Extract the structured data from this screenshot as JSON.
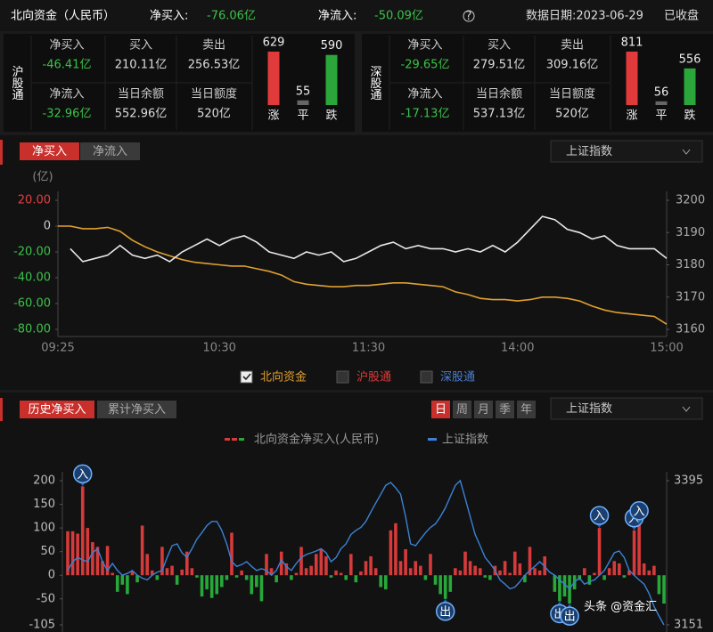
{
  "header": {
    "title": "北向资金（人民币）",
    "net_buy_label": "净买入:",
    "net_buy": "-76.06亿",
    "net_inflow_label": "净流入:",
    "net_inflow": "-50.09亿",
    "date": "数据日期:2023-06-29",
    "status": "已收盘"
  },
  "panels": [
    {
      "name": "沪股通",
      "cells": [
        {
          "label": "净买入",
          "value": "-46.41亿"
        },
        {
          "label": "买入",
          "value": "210.11亿"
        },
        {
          "label": "卖出",
          "value": "256.53亿"
        },
        {
          "label": "净流入",
          "value": "-32.96亿"
        },
        {
          "label": "当日余额",
          "value": "552.96亿"
        },
        {
          "label": "当日额度",
          "value": "520亿"
        }
      ],
      "breadth": [
        {
          "label": "涨",
          "count": 629,
          "color": "#e03a3a"
        },
        {
          "label": "平",
          "count": 55,
          "color": "#666666"
        },
        {
          "label": "跌",
          "count": 590,
          "color": "#2aa63a"
        }
      ]
    },
    {
      "name": "深股通",
      "cells": [
        {
          "label": "净买入",
          "value": "-29.65亿"
        },
        {
          "label": "买入",
          "value": "279.51亿"
        },
        {
          "label": "卖出",
          "value": "309.16亿"
        },
        {
          "label": "净流入",
          "value": "-17.13亿"
        },
        {
          "label": "当日余额",
          "value": "537.13亿"
        },
        {
          "label": "当日额度",
          "value": "520亿"
        }
      ],
      "breadth": [
        {
          "label": "涨",
          "count": 811,
          "color": "#e03a3a"
        },
        {
          "label": "平",
          "count": 56,
          "color": "#666666"
        },
        {
          "label": "跌",
          "count": 556,
          "color": "#2aa63a"
        }
      ]
    }
  ],
  "chart_data": [
    {
      "type": "line",
      "tabs": [
        "净买入",
        "净流入"
      ],
      "selector": "上证指数",
      "y_label": "(亿)",
      "categories": [
        "09:25",
        null,
        null,
        null,
        null,
        null,
        null,
        null,
        null,
        null,
        null,
        null,
        null,
        "10:30",
        null,
        null,
        null,
        null,
        null,
        null,
        null,
        null,
        null,
        null,
        null,
        "11:30",
        null,
        null,
        null,
        null,
        null,
        null,
        null,
        null,
        null,
        null,
        null,
        "14:00",
        null,
        null,
        null,
        null,
        null,
        null,
        null,
        null,
        null,
        null,
        null,
        "15:00"
      ],
      "ylim": [
        -80,
        20
      ],
      "yticks": [
        {
          "value": 20,
          "label": "20.00"
        },
        0,
        {
          "value": -20,
          "label": "-20.00"
        },
        {
          "value": -40,
          "label": "-40.00"
        },
        {
          "value": -60,
          "label": "-60.00"
        },
        {
          "value": -80,
          "label": "-80.00"
        }
      ],
      "y2lim": [
        3160,
        3200
      ],
      "y2ticks": [
        3200,
        3190,
        3180,
        3170,
        3160
      ],
      "series": [
        {
          "name": "北向资金",
          "color": "#e0a030",
          "values": [
            0,
            0,
            -2,
            -2,
            -1,
            -4,
            -11,
            -16,
            -20,
            -23,
            -26,
            -28,
            -29,
            -30,
            -31,
            -31,
            -33,
            -35,
            -38,
            -43,
            -45,
            -46,
            -47,
            -47,
            -46,
            -46,
            -45,
            -44,
            -44,
            -45,
            -46,
            -47,
            -51,
            -53,
            -56,
            -57,
            -57,
            -58,
            -57,
            -55,
            -55,
            -56,
            -58,
            -62,
            -65,
            -67,
            -68,
            -69,
            -70,
            -76
          ]
        },
        {
          "color": "#e8e8e8",
          "axis": "y2",
          "values": [
            null,
            3185,
            3181,
            3182,
            3183,
            3186,
            3183,
            3182,
            3183,
            3181,
            3184,
            3186,
            3188,
            3186,
            3188,
            3189,
            3187,
            3184,
            3183,
            3182,
            3184,
            3183,
            3184,
            3181,
            3182,
            3184,
            3186,
            3187,
            3185,
            3186,
            3185,
            3185,
            3184,
            3185,
            3184,
            3186,
            3184,
            3187,
            3191,
            3195,
            3194,
            3191,
            3190,
            3188,
            3189,
            3186,
            3185,
            3185,
            3185,
            3182
          ]
        }
      ],
      "hidden_series": [
        {
          "name": "沪股通",
          "color": "#e03a3a"
        },
        {
          "name": "深股通",
          "color": "#4a7fd0"
        }
      ]
    },
    {
      "type": "bar",
      "tabs": [
        "历史净买入",
        "累计净买入"
      ],
      "periods": [
        "日",
        "周",
        "月",
        "季",
        "年"
      ],
      "selector": "上证指数",
      "ylim": [
        -105,
        200
      ],
      "yticks": [
        200,
        150,
        100,
        50,
        0,
        -50,
        -105
      ],
      "y2lim": [
        3151,
        3395
      ],
      "y2ticks": [
        3395,
        3151
      ],
      "series": [
        {
          "name": "北向资金净买入(人民币)",
          "color": "#d63a3a",
          "negative_color": "#27a83a",
          "values": [
            93,
            93,
            88,
            188,
            100,
            70,
            60,
            30,
            62,
            5,
            -35,
            -20,
            -40,
            8,
            -15,
            105,
            45,
            10,
            -10,
            60,
            15,
            20,
            -20,
            12,
            50,
            15,
            -5,
            -45,
            -30,
            -48,
            -40,
            -25,
            -10,
            90,
            -5,
            10,
            -10,
            -40,
            -25,
            -55,
            45,
            15,
            -15,
            50,
            25,
            -10,
            5,
            60,
            15,
            20,
            45,
            55,
            40,
            -5,
            10,
            5,
            -10,
            45,
            -15,
            8,
            30,
            40,
            15,
            -25,
            -30,
            95,
            110,
            30,
            55,
            15,
            30,
            20,
            -10,
            45,
            -20,
            -40,
            -50,
            -35,
            15,
            10,
            50,
            30,
            20,
            15,
            -5,
            -10,
            20,
            10,
            30,
            5,
            50,
            25,
            -15,
            60,
            15,
            10,
            40,
            0,
            -35,
            -55,
            -45,
            -60,
            -30,
            -10,
            15,
            -20,
            5,
            100,
            -10,
            15,
            30,
            25,
            -5,
            10,
            95,
            110,
            25,
            10,
            20,
            -40,
            -60
          ]
        },
        {
          "name": "上证指数",
          "type": "line",
          "color": "#3b82d6",
          "axis": "y2",
          "values": [
            3243,
            3258,
            3265,
            3261,
            3258,
            3273,
            3280,
            3258,
            3243,
            3255,
            3243,
            3235,
            3238,
            3243,
            3235,
            3230,
            3227,
            3235,
            3240,
            3243,
            3265,
            3285,
            3288,
            3273,
            3265,
            3280,
            3296,
            3307,
            3319,
            3326,
            3326,
            3311,
            3288,
            3258,
            3250,
            3253,
            3258,
            3250,
            3243,
            3246,
            3243,
            3235,
            3243,
            3261,
            3250,
            3243,
            3255,
            3265,
            3270,
            3273,
            3276,
            3280,
            3273,
            3258,
            3265,
            3280,
            3288,
            3304,
            3311,
            3316,
            3326,
            3342,
            3357,
            3372,
            3387,
            3392,
            3383,
            3372,
            3334,
            3288,
            3285,
            3296,
            3307,
            3316,
            3322,
            3334,
            3349,
            3368,
            3387,
            3395,
            3365,
            3334,
            3304,
            3285,
            3265,
            3255,
            3243,
            3227,
            3220,
            3212,
            3215,
            3224,
            3235,
            3243,
            3250,
            3258,
            3250,
            3240,
            3235,
            3227,
            3220,
            3212,
            3224,
            3230,
            3220,
            3224,
            3227,
            3235,
            3243,
            3258,
            3273,
            3276,
            3265,
            3243,
            3235,
            3227,
            3220,
            3204,
            3182,
            3166,
            3151
          ]
        }
      ],
      "markers": [
        null,
        null,
        null,
        "入",
        null,
        null,
        null,
        null,
        null,
        null,
        null,
        null,
        null,
        null,
        null,
        null,
        null,
        null,
        null,
        null,
        null,
        null,
        null,
        null,
        null,
        null,
        null,
        null,
        null,
        null,
        null,
        null,
        null,
        null,
        null,
        null,
        null,
        null,
        null,
        null,
        null,
        null,
        null,
        null,
        null,
        null,
        null,
        null,
        null,
        null,
        null,
        null,
        null,
        null,
        null,
        null,
        null,
        null,
        null,
        null,
        null,
        null,
        null,
        null,
        null,
        null,
        null,
        null,
        null,
        null,
        null,
        null,
        null,
        null,
        null,
        null,
        "出",
        null,
        null,
        null,
        null,
        null,
        null,
        null,
        null,
        null,
        null,
        null,
        null,
        null,
        null,
        null,
        null,
        null,
        null,
        null,
        null,
        null,
        null,
        "出",
        null,
        "出",
        null,
        null,
        null,
        null,
        null,
        "入",
        null,
        null,
        null,
        null,
        null,
        null,
        "入",
        "入",
        null,
        null,
        null,
        null,
        null
      ]
    }
  ],
  "watermark": "头条 @资金汇"
}
